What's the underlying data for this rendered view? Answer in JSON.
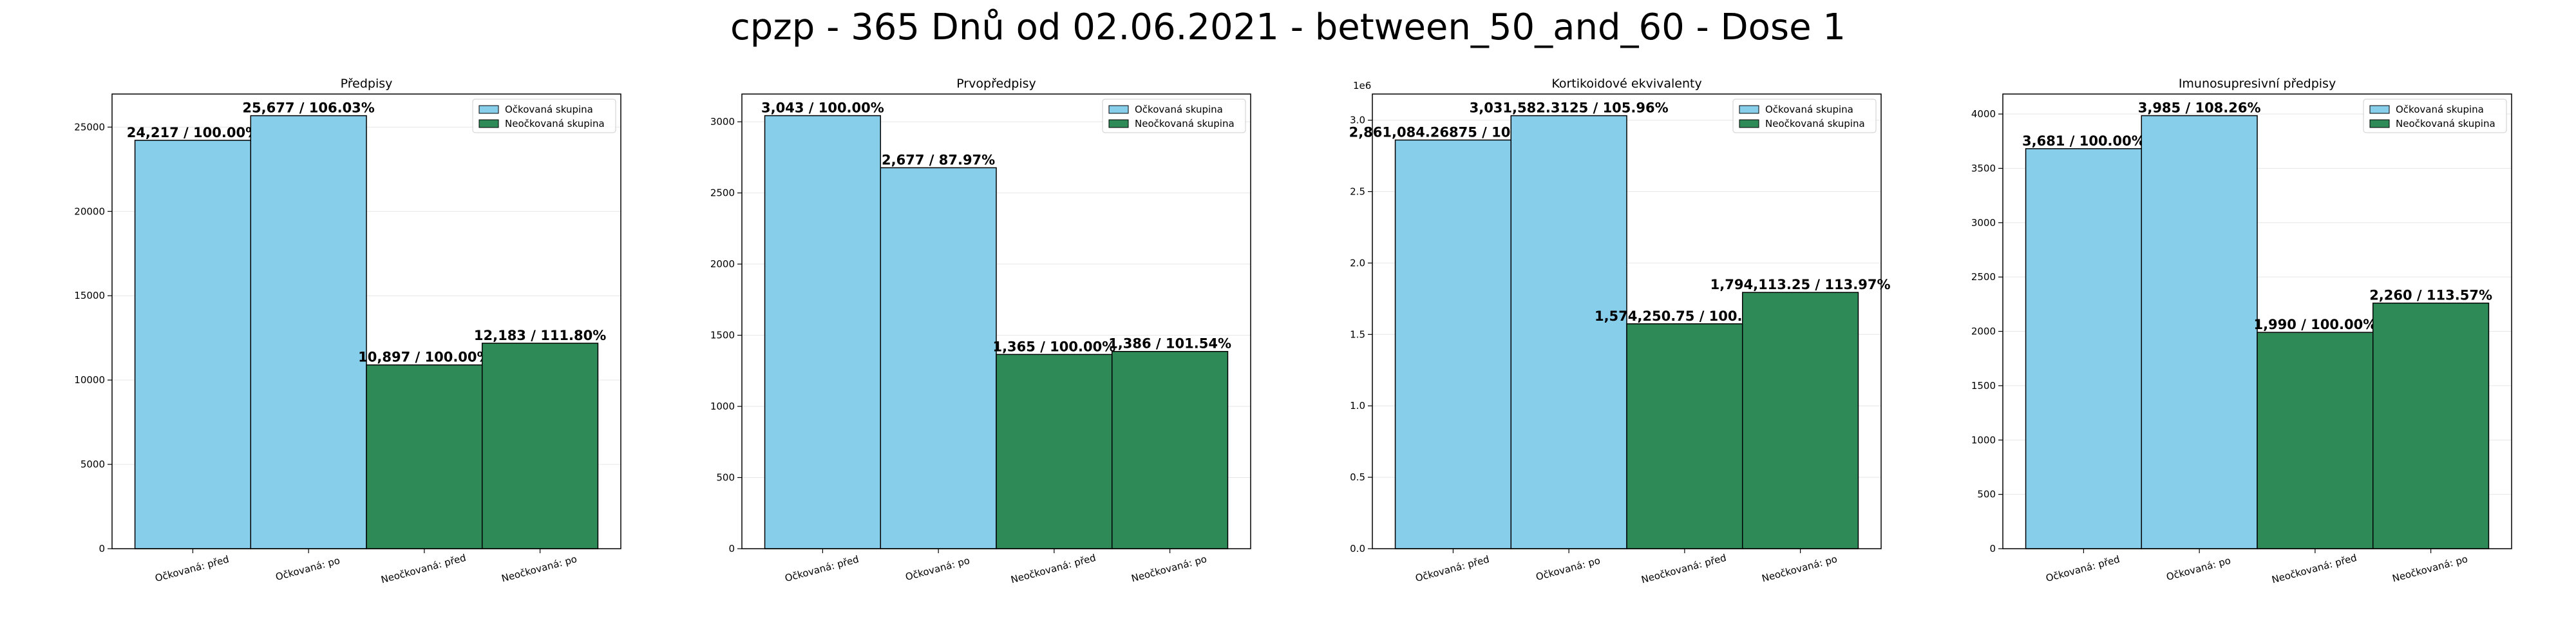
{
  "title": "cpzp - 365 Dnů od 02.06.2021 - between_50_and_60 - Dose 1",
  "colors": {
    "vaccinated": "#87ceeb",
    "unvaccinated": "#2e8b57"
  },
  "chart_data": [
    {
      "type": "bar",
      "title": "Předpisy",
      "categories": [
        "Očkovaná: před",
        "Očkovaná: po",
        "Neočkovaná: před",
        "Neočkovaná: po"
      ],
      "values": [
        24217,
        25677,
        10897,
        12183
      ],
      "data_labels": [
        "24,217 / 100.00%",
        "25,677 / 106.03%",
        "10,897 / 100.00%",
        "12,183 / 111.80%"
      ],
      "series_colors": [
        "vaccinated",
        "vaccinated",
        "unvaccinated",
        "unvaccinated"
      ],
      "legend": [
        "Očkovaná skupina",
        "Neočkovaná skupina"
      ],
      "legend_position": "top-right",
      "ylim": [
        0,
        26961
      ],
      "yticks": [
        0,
        5000,
        10000,
        15000,
        20000,
        25000
      ],
      "ytick_labels": [
        "0",
        "5000",
        "10000",
        "15000",
        "20000",
        "25000"
      ],
      "offset_label": "",
      "grid": true
    },
    {
      "type": "bar",
      "title": "Prvopředpisy",
      "categories": [
        "Očkovaná: před",
        "Očkovaná: po",
        "Neočkovaná: před",
        "Neočkovaná: po"
      ],
      "values": [
        3043,
        2677,
        1365,
        1386
      ],
      "data_labels": [
        "3,043 / 100.00%",
        "2,677 / 87.97%",
        "1,365 / 100.00%",
        "1,386 / 101.54%"
      ],
      "series_colors": [
        "vaccinated",
        "vaccinated",
        "unvaccinated",
        "unvaccinated"
      ],
      "legend": [
        "Očkovaná skupina",
        "Neočkovaná skupina"
      ],
      "legend_position": "top-right",
      "ylim": [
        0,
        3195
      ],
      "yticks": [
        0,
        500,
        1000,
        1500,
        2000,
        2500,
        3000
      ],
      "ytick_labels": [
        "0",
        "500",
        "1000",
        "1500",
        "2000",
        "2500",
        "3000"
      ],
      "offset_label": "",
      "grid": true
    },
    {
      "type": "bar",
      "title": "Kortikoidové ekvivalenty",
      "categories": [
        "Očkovaná: před",
        "Očkovaná: po",
        "Neočkovaná: před",
        "Neočkovaná: po"
      ],
      "values": [
        2861084.26875,
        3031582.3125,
        1574250.75,
        1794113.25
      ],
      "data_labels": [
        "2,861,084.26875 / 100.00%",
        "3,031,582.3125 / 105.96%",
        "1,574,250.75 / 100.00%",
        "1,794,113.25 / 113.97%"
      ],
      "series_colors": [
        "vaccinated",
        "vaccinated",
        "unvaccinated",
        "unvaccinated"
      ],
      "legend": [
        "Očkovaná skupina",
        "Neočkovaná skupina"
      ],
      "legend_position": "top-right",
      "ylim": [
        0,
        3183161
      ],
      "yticks": [
        0,
        500000,
        1000000,
        1500000,
        2000000,
        2500000,
        3000000
      ],
      "ytick_labels": [
        "0.0",
        "0.5",
        "1.0",
        "1.5",
        "2.0",
        "2.5",
        "3.0"
      ],
      "offset_label": "1e6",
      "grid": true
    },
    {
      "type": "bar",
      "title": "Imunosupresivní předpisy",
      "categories": [
        "Očkovaná: před",
        "Očkovaná: po",
        "Neočkovaná: před",
        "Neočkovaná: po"
      ],
      "values": [
        3681,
        3985,
        1990,
        2260
      ],
      "data_labels": [
        "3,681 / 100.00%",
        "3,985 / 108.26%",
        "1,990 / 100.00%",
        "2,260 / 113.57%"
      ],
      "series_colors": [
        "vaccinated",
        "vaccinated",
        "unvaccinated",
        "unvaccinated"
      ],
      "legend": [
        "Očkovaná skupina",
        "Neočkovaná skupina"
      ],
      "legend_position": "top-right",
      "ylim": [
        0,
        4184
      ],
      "yticks": [
        0,
        500,
        1000,
        1500,
        2000,
        2500,
        3000,
        3500,
        4000
      ],
      "ytick_labels": [
        "0",
        "500",
        "1000",
        "1500",
        "2000",
        "2500",
        "3000",
        "3500",
        "4000"
      ],
      "offset_label": "",
      "grid": true
    }
  ]
}
